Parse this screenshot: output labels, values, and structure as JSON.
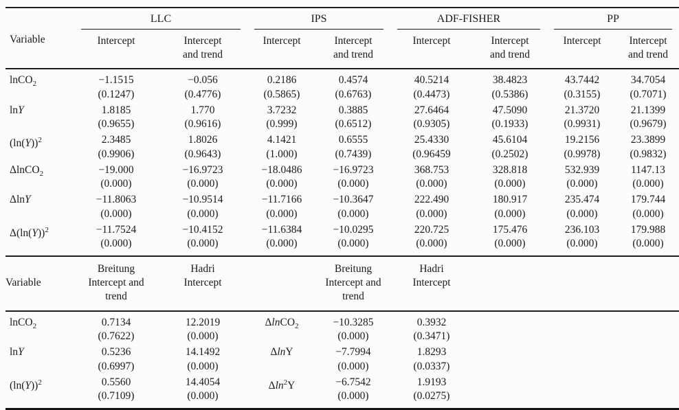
{
  "colors": {
    "text": "#1a1a1a",
    "rule": "#1c1c1c",
    "background": "#fcfcfc"
  },
  "s1": {
    "variable_header": "Variable",
    "groups": [
      "LLC",
      "IPS",
      "ADF-FISHER",
      "PP"
    ],
    "subheaders": [
      "Intercept",
      "Intercept\nand trend",
      "Intercept",
      "Intercept\nand trend",
      "Intercept",
      "Intercept\nand trend",
      "Intercept",
      "Intercept\nand trend"
    ],
    "rows": [
      {
        "label": "lnCO<sub>2</sub>",
        "v": [
          "−1.1515",
          "−0.056",
          "0.2186",
          "0.4574",
          "40.5214",
          "38.4823",
          "43.7442",
          "34.7054"
        ],
        "p": [
          "(0.1247)",
          "(0.4776)",
          "(0.5865)",
          "(0.6763)",
          "(0.4473)",
          "(0.5386)",
          "(0.3155)",
          "(0.7071)"
        ]
      },
      {
        "label": "ln<i>Y</i>",
        "v": [
          "1.8185",
          "1.770",
          "3.7232",
          "0.3885",
          "27.6464",
          "47.5090",
          "21.3720",
          "21.1399"
        ],
        "p": [
          "(0.9655)",
          "(0.9616)",
          "(0.999)",
          "(0.6512)",
          "(0.9305)",
          "(0.1933)",
          "(0.9931)",
          "(0.9679)"
        ]
      },
      {
        "label": "(ln(<i>Y</i>))<sup>2</sup>",
        "v": [
          "2.3485",
          "1.8026",
          "4.1421",
          "0.6555",
          "25.4330",
          "45.6104",
          "19.2156",
          "23.3899"
        ],
        "p": [
          "(0.9906)",
          "(0.9643)",
          "(1.000)",
          "(0.7439)",
          "(0.96459",
          "(0.2502)",
          "(0.9978)",
          "(0.9832)"
        ]
      },
      {
        "label": "ΔlnCO<sub>2</sub>",
        "v": [
          "−19.000",
          "−16.9723",
          "−18.0486",
          "−16.9723",
          "368.753",
          "328.818",
          "532.939",
          "1147.13"
        ],
        "p": [
          "(0.000)",
          "(0.000)",
          "(0.000)",
          "(0.000)",
          "(0.000)",
          "(0.000)",
          "(0.000)",
          "(0.000)"
        ]
      },
      {
        "label": "Δln<i>Y</i>",
        "v": [
          "−11.8063",
          "−10.9514",
          "−11.7166",
          "−10.3647",
          "222.490",
          "180.917",
          "235.474",
          "179.744"
        ],
        "p": [
          "(0.000)",
          "(0.000)",
          "(0.000)",
          "(0.000)",
          "(0.000)",
          "(0.000)",
          "(0.000)",
          "(0.000)"
        ]
      },
      {
        "label": "Δ(ln(<i>Y</i>))<sup>2</sup>",
        "v": [
          "−11.7524",
          "−10.4152",
          "−11.6384",
          "−10.0295",
          "220.725",
          "175.476",
          "236.103",
          "179.988"
        ],
        "p": [
          "(0.000)",
          "(0.000)",
          "(0.000)",
          "(0.000)",
          "(0.000)",
          "(0.000)",
          "(0.000)",
          "(0.000)"
        ]
      }
    ]
  },
  "s2": {
    "variable_header": "Variable",
    "headers": [
      "Breitung\nIntercept and\ntrend",
      "Hadri\nIntercept",
      "",
      "Breitung\nIntercept and\ntrend",
      "Hadri\nIntercept"
    ],
    "rows": [
      {
        "label": "lnCO<sub>2</sub>",
        "dlabel": "Δ<i>ln</i>CO<sub>2</sub>",
        "v": [
          "0.7134",
          "12.2019",
          "−10.3285",
          "0.3932"
        ],
        "p": [
          "(0.7622)",
          "(0.000)",
          "(0.000)",
          "(0.3471)"
        ]
      },
      {
        "label": "ln<i>Y</i>",
        "dlabel": "Δ<i>ln</i>Y",
        "v": [
          "0.5236",
          "14.1492",
          "−7.7994",
          "1.8293"
        ],
        "p": [
          "(0.6997)",
          "(0.000)",
          "(0.000)",
          "(0.0337)"
        ]
      },
      {
        "label": "(ln(<i>Y</i>))<sup>2</sup>",
        "dlabel": "Δ<i>ln</i><sup>2</sup>Y",
        "v": [
          "0.5560",
          "14.4054",
          "−6.7542",
          "1.9193"
        ],
        "p": [
          "(0.7109)",
          "(0.000)",
          "(0.000)",
          "(0.0275)"
        ]
      }
    ]
  }
}
